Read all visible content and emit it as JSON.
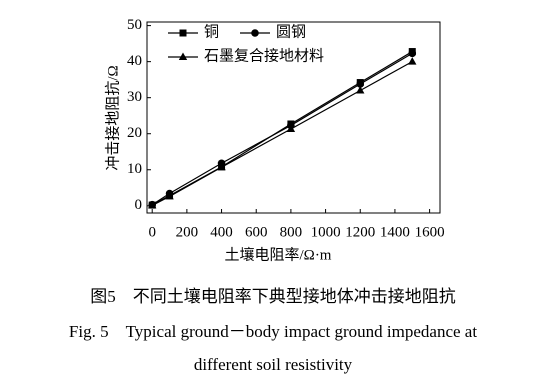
{
  "chart_data": {
    "type": "line",
    "xlabel": "土壤电阻率/Ω·m",
    "ylabel": "冲击接地阻抗/Ω",
    "caption_cn": "图5　不同土壤电阻率下典型接地体冲击接地阻抗",
    "caption_en": [
      "Fig. 5　Typical ground－body impact ground impedance at",
      "different soil resistivity"
    ],
    "x": [
      0,
      100,
      400,
      800,
      1200,
      1500
    ],
    "series": [
      {
        "name": "铜",
        "color": "#000000",
        "marker": "square",
        "values": [
          0.2,
          2.8,
          10.8,
          22.7,
          34.2,
          42.8
        ]
      },
      {
        "name": "圆钢",
        "color": "#000000",
        "marker": "circle",
        "values": [
          0.3,
          3.4,
          11.8,
          22.3,
          33.8,
          42.3
        ]
      },
      {
        "name": "石墨复合接地材料",
        "color": "#000000",
        "marker": "triangle",
        "values": [
          0.1,
          2.6,
          10.7,
          21.3,
          32.0,
          40.0
        ]
      }
    ],
    "xlim": [
      -30,
      1660
    ],
    "ylim": [
      -2,
      51
    ],
    "xticks": [
      0,
      200,
      400,
      600,
      800,
      1000,
      1200,
      1400,
      1600
    ],
    "yticks": [
      0,
      10,
      20,
      30,
      40,
      50
    ],
    "legend": "upper left",
    "grid": false
  }
}
